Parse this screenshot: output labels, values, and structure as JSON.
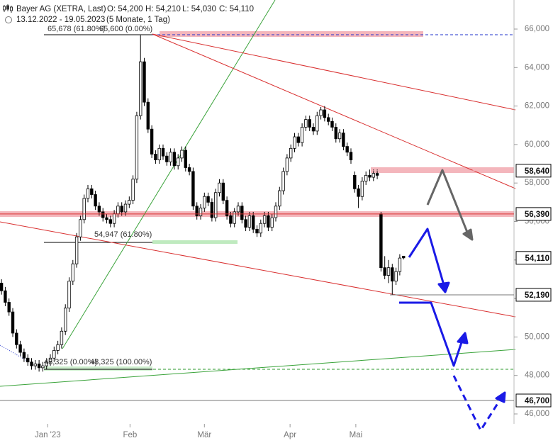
{
  "header": {
    "title": "Bayer AG (XETRA, Last)",
    "open": "O: 54,200",
    "high": "H: 54,210",
    "low": "L: 54,030",
    "close": "C: 54,110",
    "range": "13.12.2022 - 19.05.2023",
    "span": "(5 Monate, 1 Tag)"
  },
  "chart_data": {
    "type": "candlestick",
    "ylim": [
      44490,
      67510
    ],
    "xlim": [
      -0.4,
      136.4
    ],
    "yticks": [
      {
        "value": 46000,
        "label": "46,000"
      },
      {
        "value": 48000,
        "label": "48,000"
      },
      {
        "value": 50000,
        "label": "50,000"
      },
      {
        "value": 52000,
        "label": "52,000"
      },
      {
        "value": 54000,
        "label": "54,000"
      },
      {
        "value": 56000,
        "label": "56,000"
      },
      {
        "value": 58000,
        "label": "58,000"
      },
      {
        "value": 60000,
        "label": "60,000"
      },
      {
        "value": 62000,
        "label": "62,000"
      },
      {
        "value": 64000,
        "label": "64,000"
      },
      {
        "value": 66000,
        "label": "66,000"
      }
    ],
    "xticks": [
      {
        "value": 12.3,
        "label": "Jan '23"
      },
      {
        "value": 34.2,
        "label": "Feb"
      },
      {
        "value": 54,
        "label": "Mär"
      },
      {
        "value": 76.8,
        "label": "Apr"
      },
      {
        "value": 94.3,
        "label": "Mai"
      }
    ],
    "levels": [
      {
        "value": 58640,
        "label": "58,640"
      },
      {
        "value": 56390,
        "label": "56,390"
      },
      {
        "value": 54110,
        "label": "54,110"
      },
      {
        "value": 52190,
        "label": "52,190"
      },
      {
        "value": 46700,
        "label": "46,700"
      }
    ],
    "annotations": [
      "65,678 (61.80%)",
      "65,600 (0.00%)",
      "54,947 (61.80%)",
      "48,325 (0.00%)",
      "48,325 (100.00%)"
    ],
    "candles": [
      [
        52800,
        53000,
        52200,
        52400
      ],
      [
        52400,
        52600,
        51600,
        51800
      ],
      [
        51800,
        52000,
        51100,
        51300
      ],
      [
        51300,
        51500,
        50000,
        50200
      ],
      [
        50200,
        50400,
        49400,
        49600
      ],
      [
        49600,
        49800,
        49000,
        49200
      ],
      [
        49200,
        49400,
        48700,
        48900
      ],
      [
        48900,
        49100,
        48500,
        48700
      ],
      [
        48700,
        48900,
        48300,
        48500
      ],
      [
        48500,
        48800,
        48300,
        48600
      ],
      [
        48600,
        48800,
        48200,
        48400
      ],
      [
        48400,
        48700,
        48200,
        48500
      ],
      [
        48500,
        48900,
        48300,
        48700
      ],
      [
        48700,
        49100,
        48500,
        48900
      ],
      [
        48900,
        49500,
        48700,
        49300
      ],
      [
        49300,
        49800,
        49100,
        49600
      ],
      [
        49600,
        50500,
        49400,
        50300
      ],
      [
        50300,
        51700,
        50100,
        51500
      ],
      [
        51500,
        53100,
        51300,
        52900
      ],
      [
        52900,
        54000,
        52700,
        53800
      ],
      [
        53800,
        55400,
        53600,
        55200
      ],
      [
        55200,
        56300,
        55000,
        56100
      ],
      [
        56100,
        57400,
        55900,
        57200
      ],
      [
        57200,
        57900,
        57000,
        57700
      ],
      [
        57700,
        57900,
        57200,
        57400
      ],
      [
        57400,
        57600,
        56600,
        56800
      ],
      [
        56800,
        57000,
        56300,
        56500
      ],
      [
        56500,
        56700,
        56000,
        56200
      ],
      [
        56200,
        56400,
        55900,
        56100
      ],
      [
        56100,
        56300,
        55700,
        55900
      ],
      [
        55900,
        56600,
        55700,
        56400
      ],
      [
        56400,
        57000,
        56200,
        56800
      ],
      [
        56800,
        57000,
        56300,
        56500
      ],
      [
        56500,
        57100,
        56300,
        56900
      ],
      [
        56900,
        57300,
        56700,
        57100
      ],
      [
        57100,
        58400,
        56900,
        58200
      ],
      [
        58200,
        61700,
        58000,
        61500
      ],
      [
        61500,
        65678,
        61300,
        64300
      ],
      [
        64300,
        64500,
        62000,
        62200
      ],
      [
        62200,
        62400,
        60600,
        60800
      ],
      [
        60800,
        61000,
        59300,
        59500
      ],
      [
        59500,
        59700,
        59000,
        59200
      ],
      [
        59200,
        60000,
        59000,
        59800
      ],
      [
        59800,
        60000,
        59200,
        59400
      ],
      [
        59400,
        59600,
        58900,
        59100
      ],
      [
        59100,
        59800,
        58900,
        59600
      ],
      [
        59600,
        59800,
        58700,
        58900
      ],
      [
        58900,
        59500,
        58700,
        59300
      ],
      [
        59300,
        59900,
        59100,
        59700
      ],
      [
        59700,
        59900,
        58600,
        58800
      ],
      [
        58800,
        59000,
        58400,
        58600
      ],
      [
        58600,
        58800,
        56600,
        56800
      ],
      [
        56800,
        57000,
        56100,
        56300
      ],
      [
        56300,
        56900,
        56100,
        56700
      ],
      [
        56700,
        57500,
        56500,
        57300
      ],
      [
        57300,
        57500,
        56800,
        57000
      ],
      [
        57000,
        57200,
        56000,
        56200
      ],
      [
        56200,
        57700,
        56000,
        57500
      ],
      [
        57500,
        58200,
        57300,
        58000
      ],
      [
        58000,
        58200,
        56900,
        57100
      ],
      [
        57100,
        57300,
        56100,
        56300
      ],
      [
        56300,
        56500,
        55700,
        55900
      ],
      [
        55900,
        56700,
        55700,
        56500
      ],
      [
        56500,
        57000,
        56300,
        56800
      ],
      [
        56800,
        57000,
        55900,
        56100
      ],
      [
        56100,
        56300,
        55500,
        55700
      ],
      [
        55700,
        56500,
        55500,
        56300
      ],
      [
        56300,
        56500,
        55400,
        55600
      ],
      [
        55600,
        55800,
        55200,
        55400
      ],
      [
        55400,
        56100,
        55200,
        55900
      ],
      [
        55900,
        56500,
        55700,
        56300
      ],
      [
        56300,
        56500,
        55500,
        55700
      ],
      [
        55700,
        56400,
        55500,
        56200
      ],
      [
        56200,
        57000,
        56000,
        56800
      ],
      [
        56800,
        57800,
        56600,
        57600
      ],
      [
        57600,
        58800,
        57400,
        58600
      ],
      [
        58600,
        59500,
        58400,
        59300
      ],
      [
        59300,
        60000,
        59100,
        59800
      ],
      [
        59800,
        60600,
        59600,
        60400
      ],
      [
        60400,
        60600,
        59900,
        60100
      ],
      [
        60100,
        61100,
        59900,
        60900
      ],
      [
        60900,
        61500,
        60700,
        61300
      ],
      [
        61300,
        61500,
        60700,
        60900
      ],
      [
        60900,
        61100,
        60500,
        60700
      ],
      [
        60700,
        61700,
        60500,
        61500
      ],
      [
        61500,
        61950,
        61300,
        61800
      ],
      [
        61800,
        62000,
        61200,
        61400
      ],
      [
        61400,
        61600,
        61000,
        61200
      ],
      [
        61200,
        61400,
        60700,
        60900
      ],
      [
        60900,
        61100,
        60100,
        60300
      ],
      [
        60300,
        60800,
        60100,
        60600
      ],
      [
        60600,
        60800,
        59700,
        59900
      ],
      [
        59900,
        60100,
        59400,
        59600
      ],
      [
        59600,
        59800,
        59000,
        59200
      ],
      [
        58400,
        58600,
        57500,
        57700
      ],
      [
        57700,
        57900,
        56700,
        57300
      ],
      [
        57300,
        58300,
        57100,
        58100
      ],
      [
        58100,
        58600,
        57900,
        58400
      ],
      [
        58400,
        58700,
        58100,
        58300
      ],
      [
        58300,
        58700,
        58100,
        58500
      ],
      [
        58500,
        58700,
        58200,
        58400
      ],
      [
        56400,
        56500,
        53400,
        53600
      ],
      [
        53600,
        54200,
        53000,
        53200
      ],
      [
        53200,
        54000,
        52800,
        53600
      ],
      [
        53600,
        53800,
        52190,
        52900
      ],
      [
        52900,
        53600,
        52700,
        53400
      ],
      [
        53400,
        54300,
        53200,
        54100
      ],
      [
        54200,
        54210,
        54030,
        54110
      ]
    ]
  }
}
